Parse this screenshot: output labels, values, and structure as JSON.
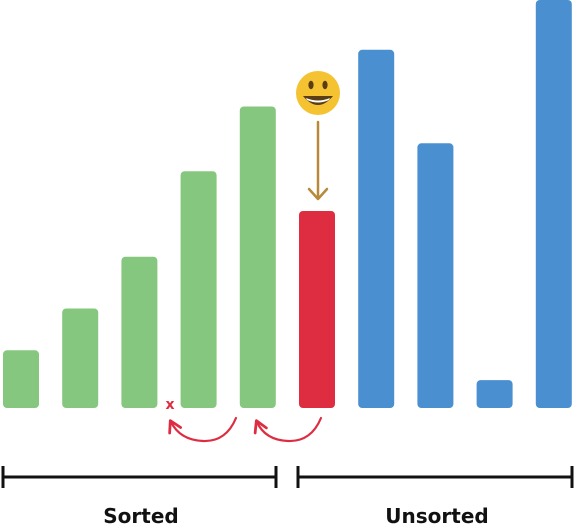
{
  "chart_data": {
    "type": "bar",
    "title": "",
    "xlabel": "",
    "ylabel": "",
    "ylim": [
      0,
      410
    ],
    "values": [
      58,
      100,
      152,
      238,
      303,
      198,
      360,
      266,
      28,
      410
    ],
    "bar_states": [
      "sorted",
      "sorted",
      "sorted",
      "sorted",
      "sorted",
      "current",
      "unsorted",
      "unsorted",
      "unsorted",
      "unsorted"
    ],
    "colors": {
      "sorted": "#85c77e",
      "current": "#de2c41",
      "unsorted": "#4a8fd0",
      "arrow_down": "#b8893a",
      "curved_arrows": "#de2c41",
      "x_mark": "#de2c41",
      "bracket": "#111111",
      "emoji_face": "#f5c232"
    }
  },
  "labels": {
    "sorted": "Sorted",
    "unsorted": "Unsorted",
    "x_mark": "x"
  },
  "icons": {
    "current_item": "smiling-face-icon",
    "insertion_indicator": "x-mark-icon"
  }
}
